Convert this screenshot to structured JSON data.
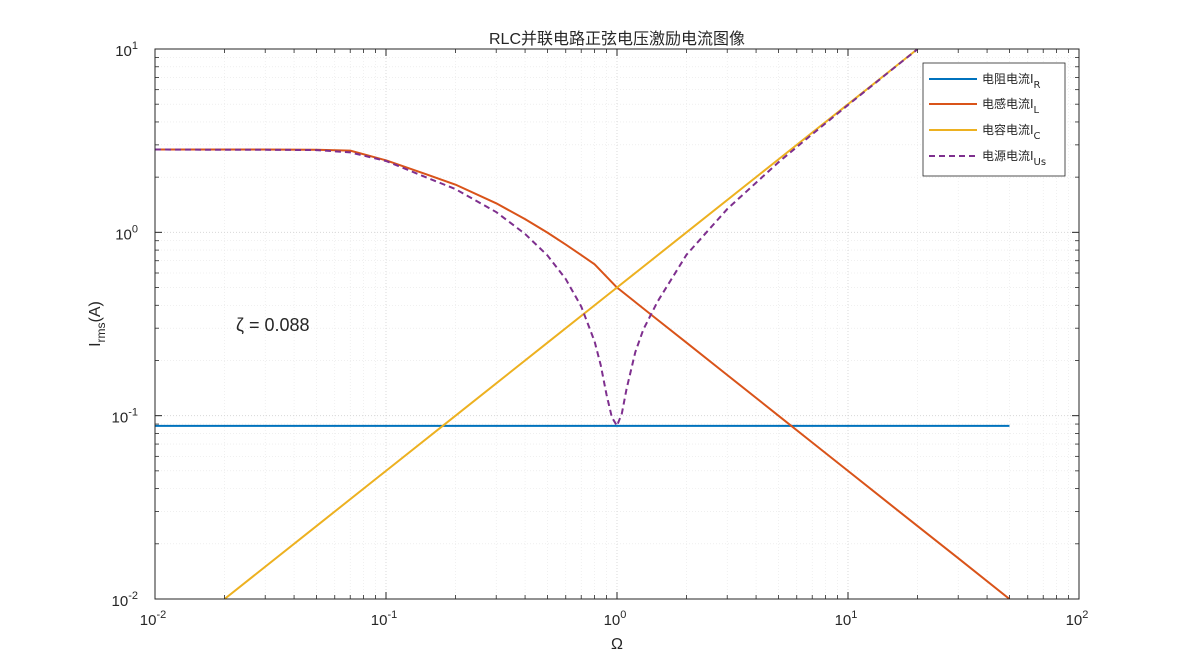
{
  "chart_data": {
    "type": "line",
    "title": "RLC并联电路正弦电压激励电流图像",
    "xlabel": "Ω",
    "ylabel": {
      "base": "I",
      "sub": "rms",
      "suffix": "(A)"
    },
    "xscale": "log",
    "yscale": "log",
    "xlim": [
      0.01,
      100
    ],
    "ylim": [
      0.01,
      10
    ],
    "grid": true,
    "minor_grid": true,
    "legend_position": "top-right",
    "x_ticks": [
      {
        "value": 0.01,
        "base": "10",
        "exp": "-2"
      },
      {
        "value": 0.1,
        "base": "10",
        "exp": "-1"
      },
      {
        "value": 1,
        "base": "10",
        "exp": "0"
      },
      {
        "value": 10,
        "base": "10",
        "exp": "1"
      },
      {
        "value": 100,
        "base": "10",
        "exp": "2"
      }
    ],
    "y_ticks": [
      {
        "value": 0.01,
        "base": "10",
        "exp": "-2"
      },
      {
        "value": 0.1,
        "base": "10",
        "exp": "-1"
      },
      {
        "value": 1,
        "base": "10",
        "exp": "0"
      },
      {
        "value": 10,
        "base": "10",
        "exp": "1"
      }
    ],
    "annotation": "ζ = 0.088",
    "series": [
      {
        "name": "电阻电流I",
        "sub": "R",
        "color": "#0072BD",
        "dash": "solid",
        "x": [
          0.01,
          0.1,
          0.5,
          1,
          2,
          10,
          50
        ],
        "y": [
          0.088,
          0.088,
          0.088,
          0.088,
          0.088,
          0.088,
          0.088
        ]
      },
      {
        "name": "电感电流I",
        "sub": "L",
        "color": "#D95319",
        "dash": "solid",
        "x": [
          0.01,
          0.02,
          0.03,
          0.05,
          0.07,
          0.1,
          0.15,
          0.2,
          0.3,
          0.4,
          0.5,
          0.6,
          0.7,
          0.8,
          1,
          1.5,
          2,
          3,
          5,
          7,
          10,
          15,
          20,
          30,
          50
        ],
        "y": [
          2.83,
          2.83,
          2.83,
          2.82,
          2.79,
          2.47,
          2.07,
          1.82,
          1.44,
          1.18,
          0.996,
          0.858,
          0.752,
          0.669,
          0.5,
          0.333,
          0.25,
          0.1667,
          0.1,
          0.0714,
          0.05,
          0.0333,
          0.025,
          0.0167,
          0.01
        ]
      },
      {
        "name": "电容电流I",
        "sub": "C",
        "color": "#EDB120",
        "dash": "solid",
        "x": [
          0.02,
          0.05,
          0.1,
          0.2,
          0.5,
          1,
          2,
          5,
          10,
          20
        ],
        "y": [
          0.01,
          0.025,
          0.05,
          0.1,
          0.25,
          0.5,
          1,
          2.5,
          5,
          10
        ]
      },
      {
        "name": "电源电流I",
        "sub": "Us",
        "color": "#7E2F8E",
        "dash": "dashed",
        "x": [
          0.01,
          0.02,
          0.03,
          0.05,
          0.07,
          0.1,
          0.15,
          0.2,
          0.3,
          0.4,
          0.5,
          0.6,
          0.7,
          0.8,
          0.85,
          0.9,
          0.95,
          1,
          1.05,
          1.1,
          1.2,
          1.3,
          1.5,
          2,
          3,
          5,
          7,
          10,
          15,
          20
        ],
        "y": [
          2.83,
          2.82,
          2.82,
          2.81,
          2.73,
          2.45,
          1.99,
          1.72,
          1.29,
          0.98,
          0.748,
          0.556,
          0.394,
          0.254,
          0.189,
          0.131,
          0.098,
          0.088,
          0.103,
          0.14,
          0.222,
          0.295,
          0.42,
          0.755,
          1.34,
          2.41,
          3.43,
          4.95,
          7.47,
          9.98
        ]
      }
    ]
  },
  "colors": {
    "axis": "#262626",
    "grid": "#d9d9d9",
    "legend_border": "#262626"
  }
}
